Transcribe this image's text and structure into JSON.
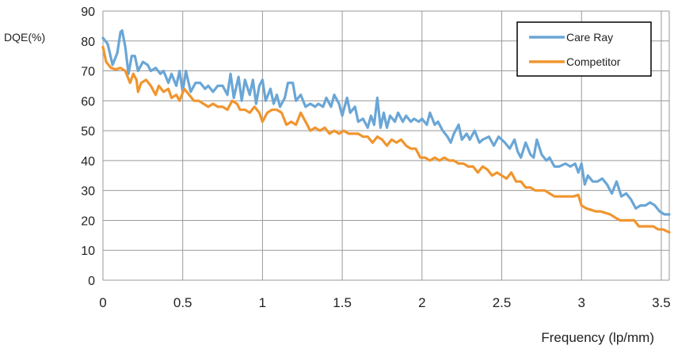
{
  "chart_data": {
    "type": "line",
    "title": "",
    "ylabel": "DQE(%)",
    "xlabel": "Frequency (lp/mm)",
    "xlim": [
      0,
      3.55
    ],
    "ylim": [
      0,
      90
    ],
    "xticks": [
      0,
      0.5,
      1,
      1.5,
      2,
      2.5,
      3,
      3.5
    ],
    "xtick_labels": [
      "0",
      "0.5",
      "1",
      "1.5",
      "2",
      "2.5",
      "3",
      "3.5"
    ],
    "yticks": [
      0,
      10,
      20,
      30,
      40,
      50,
      60,
      70,
      80,
      90
    ],
    "ytick_labels": [
      "0",
      "10",
      "20",
      "30",
      "40",
      "50",
      "60",
      "70",
      "80",
      "90"
    ],
    "grid": true,
    "legend": "top-right",
    "series": [
      {
        "name": "Care Ray",
        "color": "#6aa6d6",
        "points": [
          [
            0.0,
            81
          ],
          [
            0.03,
            79
          ],
          [
            0.06,
            72
          ],
          [
            0.09,
            76
          ],
          [
            0.11,
            83
          ],
          [
            0.12,
            83.5
          ],
          [
            0.14,
            78
          ],
          [
            0.16,
            69
          ],
          [
            0.18,
            75
          ],
          [
            0.2,
            75
          ],
          [
            0.22,
            70
          ],
          [
            0.25,
            73
          ],
          [
            0.28,
            72
          ],
          [
            0.3,
            70
          ],
          [
            0.33,
            71
          ],
          [
            0.36,
            69
          ],
          [
            0.38,
            70
          ],
          [
            0.41,
            66
          ],
          [
            0.43,
            69
          ],
          [
            0.46,
            65
          ],
          [
            0.48,
            70
          ],
          [
            0.5,
            63
          ],
          [
            0.52,
            70
          ],
          [
            0.55,
            63
          ],
          [
            0.58,
            66
          ],
          [
            0.61,
            66
          ],
          [
            0.64,
            64
          ],
          [
            0.66,
            65
          ],
          [
            0.69,
            63
          ],
          [
            0.72,
            65
          ],
          [
            0.75,
            65
          ],
          [
            0.78,
            62
          ],
          [
            0.8,
            69
          ],
          [
            0.82,
            61
          ],
          [
            0.85,
            68
          ],
          [
            0.87,
            60
          ],
          [
            0.89,
            67
          ],
          [
            0.92,
            62
          ],
          [
            0.94,
            67
          ],
          [
            0.96,
            59
          ],
          [
            0.98,
            65
          ],
          [
            1.0,
            67
          ],
          [
            1.02,
            60
          ],
          [
            1.05,
            64
          ],
          [
            1.07,
            59
          ],
          [
            1.09,
            62
          ],
          [
            1.11,
            58
          ],
          [
            1.14,
            61
          ],
          [
            1.16,
            66
          ],
          [
            1.19,
            66
          ],
          [
            1.21,
            60
          ],
          [
            1.24,
            62
          ],
          [
            1.27,
            58
          ],
          [
            1.3,
            59
          ],
          [
            1.33,
            58
          ],
          [
            1.35,
            59
          ],
          [
            1.38,
            58
          ],
          [
            1.4,
            61
          ],
          [
            1.43,
            58
          ],
          [
            1.45,
            62
          ],
          [
            1.48,
            59
          ],
          [
            1.5,
            55
          ],
          [
            1.53,
            61
          ],
          [
            1.55,
            56
          ],
          [
            1.58,
            58
          ],
          [
            1.6,
            53
          ],
          [
            1.63,
            54
          ],
          [
            1.66,
            51
          ],
          [
            1.68,
            55
          ],
          [
            1.7,
            52
          ],
          [
            1.72,
            61
          ],
          [
            1.74,
            51
          ],
          [
            1.76,
            56
          ],
          [
            1.78,
            51
          ],
          [
            1.8,
            55
          ],
          [
            1.83,
            53
          ],
          [
            1.85,
            56
          ],
          [
            1.88,
            53
          ],
          [
            1.9,
            55
          ],
          [
            1.93,
            53
          ],
          [
            1.95,
            54
          ],
          [
            1.98,
            53
          ],
          [
            2.0,
            54
          ],
          [
            2.03,
            52
          ],
          [
            2.05,
            56
          ],
          [
            2.08,
            52
          ],
          [
            2.1,
            53
          ],
          [
            2.13,
            50
          ],
          [
            2.16,
            48
          ],
          [
            2.18,
            46
          ],
          [
            2.2,
            49
          ],
          [
            2.23,
            52
          ],
          [
            2.25,
            47
          ],
          [
            2.28,
            49
          ],
          [
            2.3,
            47
          ],
          [
            2.33,
            50
          ],
          [
            2.36,
            46
          ],
          [
            2.38,
            47
          ],
          [
            2.42,
            48
          ],
          [
            2.45,
            45
          ],
          [
            2.48,
            48
          ],
          [
            2.52,
            46
          ],
          [
            2.55,
            44
          ],
          [
            2.58,
            47
          ],
          [
            2.6,
            43
          ],
          [
            2.62,
            41
          ],
          [
            2.65,
            46
          ],
          [
            2.68,
            42
          ],
          [
            2.7,
            41
          ],
          [
            2.72,
            47
          ],
          [
            2.75,
            42
          ],
          [
            2.78,
            40
          ],
          [
            2.8,
            41
          ],
          [
            2.83,
            38
          ],
          [
            2.86,
            38
          ],
          [
            2.9,
            39
          ],
          [
            2.93,
            38
          ],
          [
            2.96,
            39
          ],
          [
            2.98,
            36
          ],
          [
            3.0,
            39
          ],
          [
            3.02,
            32
          ],
          [
            3.04,
            35
          ],
          [
            3.07,
            33
          ],
          [
            3.1,
            33
          ],
          [
            3.13,
            34
          ],
          [
            3.16,
            32
          ],
          [
            3.19,
            29
          ],
          [
            3.22,
            33
          ],
          [
            3.25,
            28
          ],
          [
            3.28,
            29
          ],
          [
            3.31,
            27
          ],
          [
            3.34,
            24
          ],
          [
            3.37,
            25
          ],
          [
            3.4,
            25
          ],
          [
            3.43,
            26
          ],
          [
            3.46,
            25
          ],
          [
            3.49,
            23
          ],
          [
            3.52,
            22
          ],
          [
            3.55,
            22
          ]
        ]
      },
      {
        "name": "Competitor",
        "color": "#f0952e",
        "points": [
          [
            0.0,
            78
          ],
          [
            0.02,
            73
          ],
          [
            0.05,
            71
          ],
          [
            0.08,
            70.5
          ],
          [
            0.11,
            71
          ],
          [
            0.14,
            70
          ],
          [
            0.17,
            66
          ],
          [
            0.19,
            69
          ],
          [
            0.21,
            67
          ],
          [
            0.22,
            63
          ],
          [
            0.24,
            66
          ],
          [
            0.27,
            67
          ],
          [
            0.3,
            65
          ],
          [
            0.33,
            62
          ],
          [
            0.35,
            65
          ],
          [
            0.38,
            63
          ],
          [
            0.41,
            64
          ],
          [
            0.43,
            61
          ],
          [
            0.46,
            62
          ],
          [
            0.48,
            60
          ],
          [
            0.51,
            64
          ],
          [
            0.54,
            62
          ],
          [
            0.57,
            60
          ],
          [
            0.6,
            60
          ],
          [
            0.63,
            59
          ],
          [
            0.66,
            58
          ],
          [
            0.69,
            59
          ],
          [
            0.72,
            58
          ],
          [
            0.75,
            58
          ],
          [
            0.78,
            57
          ],
          [
            0.81,
            60
          ],
          [
            0.84,
            59
          ],
          [
            0.86,
            57
          ],
          [
            0.89,
            57
          ],
          [
            0.92,
            56
          ],
          [
            0.95,
            58
          ],
          [
            0.98,
            56
          ],
          [
            1.0,
            53
          ],
          [
            1.03,
            56
          ],
          [
            1.06,
            57
          ],
          [
            1.09,
            57
          ],
          [
            1.12,
            56
          ],
          [
            1.15,
            52
          ],
          [
            1.18,
            53
          ],
          [
            1.21,
            52
          ],
          [
            1.24,
            56
          ],
          [
            1.27,
            53
          ],
          [
            1.3,
            50
          ],
          [
            1.33,
            51
          ],
          [
            1.36,
            50
          ],
          [
            1.39,
            51
          ],
          [
            1.42,
            49
          ],
          [
            1.45,
            50
          ],
          [
            1.48,
            49
          ],
          [
            1.51,
            50
          ],
          [
            1.54,
            49
          ],
          [
            1.57,
            49
          ],
          [
            1.6,
            49
          ],
          [
            1.63,
            48
          ],
          [
            1.66,
            48
          ],
          [
            1.69,
            46
          ],
          [
            1.72,
            48
          ],
          [
            1.75,
            47
          ],
          [
            1.78,
            45
          ],
          [
            1.81,
            47
          ],
          [
            1.84,
            46
          ],
          [
            1.87,
            47
          ],
          [
            1.9,
            45
          ],
          [
            1.93,
            44
          ],
          [
            1.96,
            44
          ],
          [
            1.99,
            41
          ],
          [
            2.02,
            41
          ],
          [
            2.05,
            40
          ],
          [
            2.08,
            41
          ],
          [
            2.11,
            40
          ],
          [
            2.14,
            41
          ],
          [
            2.17,
            40
          ],
          [
            2.2,
            40
          ],
          [
            2.23,
            39
          ],
          [
            2.26,
            39
          ],
          [
            2.29,
            38
          ],
          [
            2.32,
            38
          ],
          [
            2.35,
            36
          ],
          [
            2.38,
            38
          ],
          [
            2.41,
            37
          ],
          [
            2.44,
            35
          ],
          [
            2.47,
            36
          ],
          [
            2.5,
            35
          ],
          [
            2.53,
            34
          ],
          [
            2.56,
            36
          ],
          [
            2.59,
            33
          ],
          [
            2.62,
            33
          ],
          [
            2.65,
            31
          ],
          [
            2.68,
            31
          ],
          [
            2.71,
            30
          ],
          [
            2.74,
            30
          ],
          [
            2.77,
            30
          ],
          [
            2.8,
            29
          ],
          [
            2.83,
            28
          ],
          [
            2.86,
            28
          ],
          [
            2.89,
            28
          ],
          [
            2.92,
            28
          ],
          [
            2.95,
            28
          ],
          [
            2.98,
            28.5
          ],
          [
            3.0,
            25
          ],
          [
            3.03,
            24
          ],
          [
            3.06,
            23.5
          ],
          [
            3.09,
            23
          ],
          [
            3.12,
            23
          ],
          [
            3.15,
            22.5
          ],
          [
            3.18,
            22
          ],
          [
            3.21,
            21
          ],
          [
            3.24,
            20
          ],
          [
            3.27,
            20
          ],
          [
            3.3,
            20
          ],
          [
            3.33,
            20
          ],
          [
            3.36,
            18
          ],
          [
            3.39,
            18
          ],
          [
            3.42,
            18
          ],
          [
            3.45,
            18
          ],
          [
            3.48,
            17
          ],
          [
            3.51,
            17
          ],
          [
            3.55,
            16
          ]
        ]
      }
    ]
  }
}
